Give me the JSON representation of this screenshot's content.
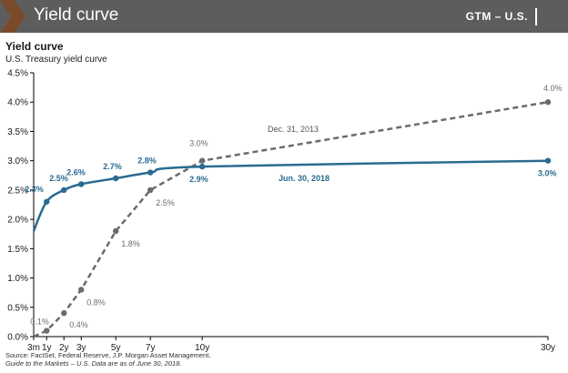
{
  "header": {
    "title": "Yield curve",
    "tag": "GTM – U.S."
  },
  "chart_data": {
    "type": "line",
    "title": "Yield curve",
    "subtitle": "U.S. Treasury yield curve",
    "xlabel": "",
    "ylabel": "",
    "ylim": [
      0,
      4.5
    ],
    "y_ticks": [
      "0.0%",
      "0.5%",
      "1.0%",
      "1.5%",
      "2.0%",
      "2.5%",
      "3.0%",
      "3.5%",
      "4.0%",
      "4.5%"
    ],
    "x_ticks": [
      {
        "label": "3m",
        "x": 0.25
      },
      {
        "label": "1y",
        "x": 1
      },
      {
        "label": "2y",
        "x": 2
      },
      {
        "label": "3y",
        "x": 3
      },
      {
        "label": "5y",
        "x": 5
      },
      {
        "label": "7y",
        "x": 7
      },
      {
        "label": "10y",
        "x": 10
      },
      {
        "label": "30y",
        "x": 30
      }
    ],
    "grid": false,
    "series": [
      {
        "name": "Jun. 30, 2018",
        "color": "#2a6b8f",
        "style": "solid",
        "points": [
          {
            "x": 0.25,
            "y": 1.8,
            "label": ""
          },
          {
            "x": 1,
            "y": 2.3,
            "label": "2.3%"
          },
          {
            "x": 2,
            "y": 2.5,
            "label": "2.5%"
          },
          {
            "x": 3,
            "y": 2.6,
            "label": "2.6%"
          },
          {
            "x": 5,
            "y": 2.7,
            "label": "2.7%"
          },
          {
            "x": 7,
            "y": 2.8,
            "label": "2.8%"
          },
          {
            "x": 10,
            "y": 2.9,
            "label": "2.9%"
          },
          {
            "x": 30,
            "y": 3.0,
            "label": "3.0%"
          }
        ]
      },
      {
        "name": "Dec. 31, 2013",
        "color": "#6b6b6b",
        "style": "dashed",
        "points": [
          {
            "x": 0.25,
            "y": 0.0,
            "label": ""
          },
          {
            "x": 1,
            "y": 0.1,
            "label": "0.1%"
          },
          {
            "x": 2,
            "y": 0.4,
            "label": "0.4%"
          },
          {
            "x": 3,
            "y": 0.8,
            "label": "0.8%"
          },
          {
            "x": 5,
            "y": 1.8,
            "label": "1.8%"
          },
          {
            "x": 7,
            "y": 2.5,
            "label": "2.5%"
          },
          {
            "x": 10,
            "y": 3.0,
            "label": "3.0%"
          },
          {
            "x": 30,
            "y": 4.0,
            "label": "4.0%"
          }
        ]
      }
    ]
  },
  "footer": {
    "source": "Source: FactSet, Federal Reserve, J.P. Morgan Asset Management.",
    "note": "Guide to the Markets – U.S. Data are as of June 30, 2018."
  }
}
